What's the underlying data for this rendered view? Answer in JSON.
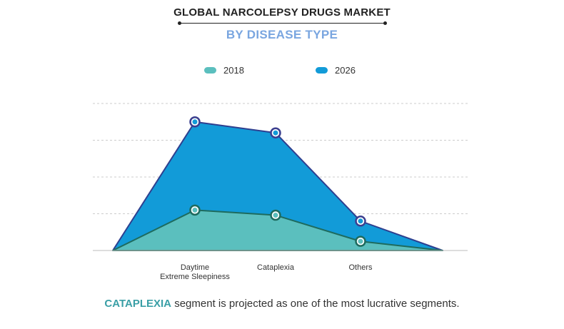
{
  "header": {
    "title": "GLOBAL NARCOLEPSY DRUGS MARKET",
    "subtitle": "BY DISEASE TYPE"
  },
  "legend": [
    {
      "label": "2018",
      "color": "#5bbfbe"
    },
    {
      "label": "2026",
      "color": "#129bd8"
    }
  ],
  "colors": {
    "subtitle": "#7aa6e0",
    "outline": "#2e3f8f",
    "marker_2018": "#1e6b5e",
    "marker_2026": "#3b3f8f",
    "grid": "#cccccc",
    "highlight": "#3a9fa6"
  },
  "chart_data": {
    "type": "area",
    "categories": [
      "",
      "Daytime\nExtreme Sleepiness",
      "Cataplexia",
      "Others",
      ""
    ],
    "series": [
      {
        "name": "2026",
        "values": [
          0,
          3.5,
          3.2,
          0.8,
          0
        ]
      },
      {
        "name": "2018",
        "values": [
          0,
          1.1,
          0.96,
          0.25,
          0
        ]
      }
    ],
    "ylim": [
      0,
      4
    ],
    "grid": true,
    "legend_position": "top-center",
    "markers_on": [
      1,
      2,
      3
    ]
  },
  "footnote": {
    "highlight": "CATAPLEXIA",
    "text": " segment is projected as one of the most lucrative segments."
  }
}
